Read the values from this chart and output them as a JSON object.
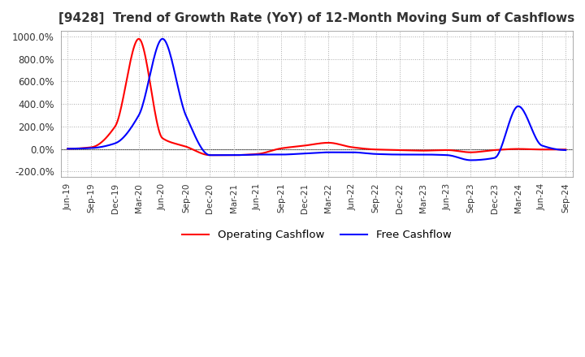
{
  "title": "[9428]  Trend of Growth Rate (YoY) of 12-Month Moving Sum of Cashflows",
  "title_fontsize": 11,
  "ylim": [
    -250,
    1050
  ],
  "yticks": [
    -200,
    0,
    200,
    400,
    600,
    800,
    1000
  ],
  "ytick_labels": [
    "-200.0%",
    "0.0%",
    "200.0%",
    "400.0%",
    "600.0%",
    "800.0%",
    "1000.0%"
  ],
  "background_color": "#ffffff",
  "grid_color": "#aaaaaa",
  "x_labels": [
    "Jun-19",
    "Sep-19",
    "Dec-19",
    "Mar-20",
    "Jun-20",
    "Sep-20",
    "Dec-20",
    "Mar-21",
    "Jun-21",
    "Sep-21",
    "Dec-21",
    "Mar-22",
    "Jun-22",
    "Sep-22",
    "Dec-22",
    "Mar-23",
    "Jun-23",
    "Sep-23",
    "Dec-23",
    "Mar-24",
    "Jun-24",
    "Sep-24"
  ],
  "operating_cashflow": [
    2,
    15,
    200,
    980,
    95,
    20,
    -55,
    -55,
    -45,
    5,
    30,
    55,
    15,
    -5,
    -10,
    -15,
    -10,
    -30,
    -10,
    0,
    -5,
    -5
  ],
  "free_cashflow": [
    2,
    8,
    50,
    300,
    980,
    290,
    -55,
    -55,
    -50,
    -50,
    -40,
    -30,
    -30,
    -45,
    -50,
    -50,
    -55,
    -100,
    -80,
    380,
    30,
    -10
  ],
  "operating_color": "#ff0000",
  "free_color": "#0000ff",
  "legend_labels": [
    "Operating Cashflow",
    "Free Cashflow"
  ]
}
